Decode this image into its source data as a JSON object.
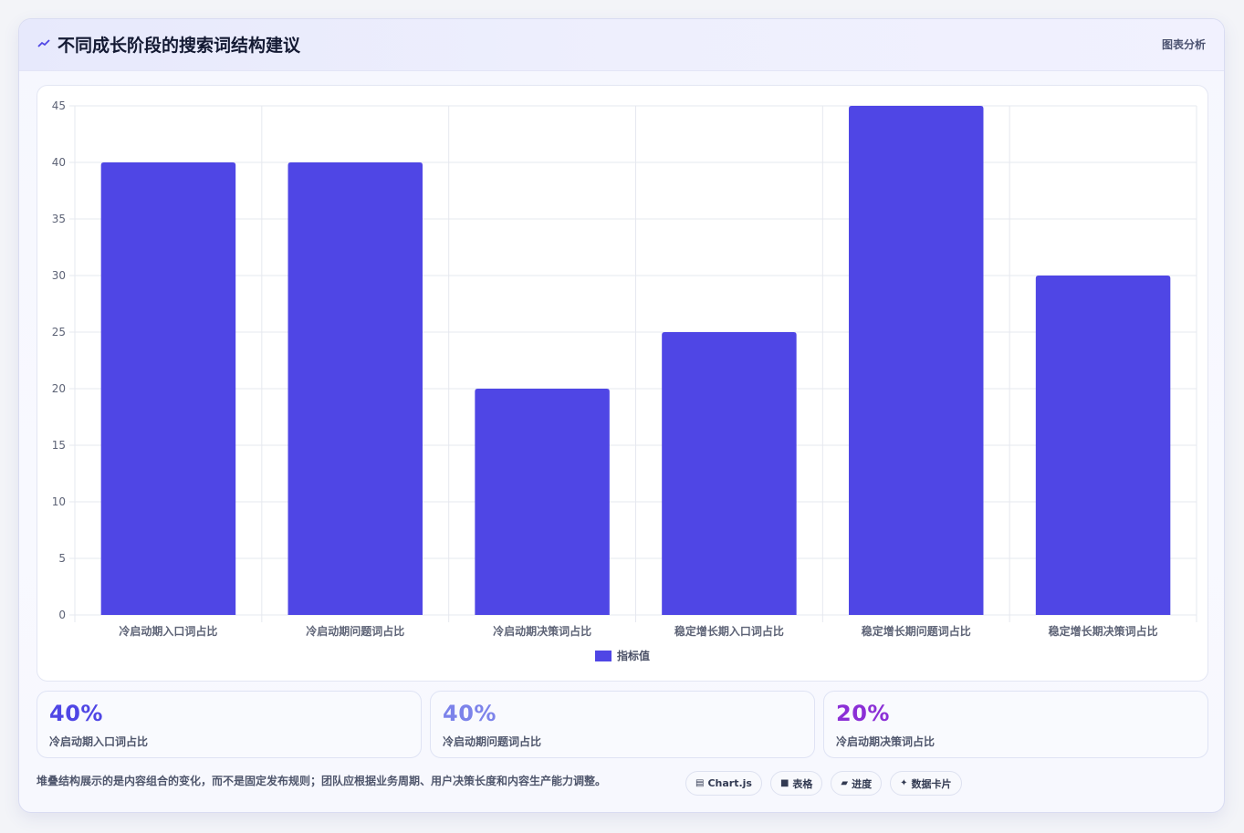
{
  "header": {
    "title": "不同成长阶段的搜索词结构建议",
    "subtitle": "图表分析",
    "accent": "#4f46e5"
  },
  "chart_data": {
    "type": "bar",
    "categories": [
      "冷启动期入口词占比",
      "冷启动期问题词占比",
      "冷启动期决策词占比",
      "稳定增长期入口词占比",
      "稳定增长期问题词占比",
      "稳定增长期决策词占比"
    ],
    "series": [
      {
        "name": "指标值",
        "values": [
          40,
          40,
          20,
          25,
          45,
          30
        ],
        "color": "#4f46e5"
      }
    ],
    "ylim": [
      0,
      45
    ],
    "yticks": [
      0,
      5,
      10,
      15,
      20,
      25,
      30,
      35,
      40,
      45
    ],
    "grid": true,
    "legend": "bottom"
  },
  "stats": [
    {
      "value": "40%",
      "label": "冷启动期入口词占比",
      "color": "#4f46e5"
    },
    {
      "value": "40%",
      "label": "冷启动期问题词占比",
      "color": "#7c83ea"
    },
    {
      "value": "20%",
      "label": "冷启动期决策词占比",
      "color": "#8b2fd6"
    }
  ],
  "footnote": "堆叠结构展示的是内容组合的变化，而不是固定发布规则；团队应根据业务周期、用户决策长度和内容生产能力调整。",
  "chips": [
    {
      "icon": "chart-icon",
      "label": "Chart.js"
    },
    {
      "icon": "table-icon",
      "label": "表格"
    },
    {
      "icon": "progress-icon",
      "label": "进度"
    },
    {
      "icon": "card-icon",
      "label": "数据卡片"
    }
  ]
}
